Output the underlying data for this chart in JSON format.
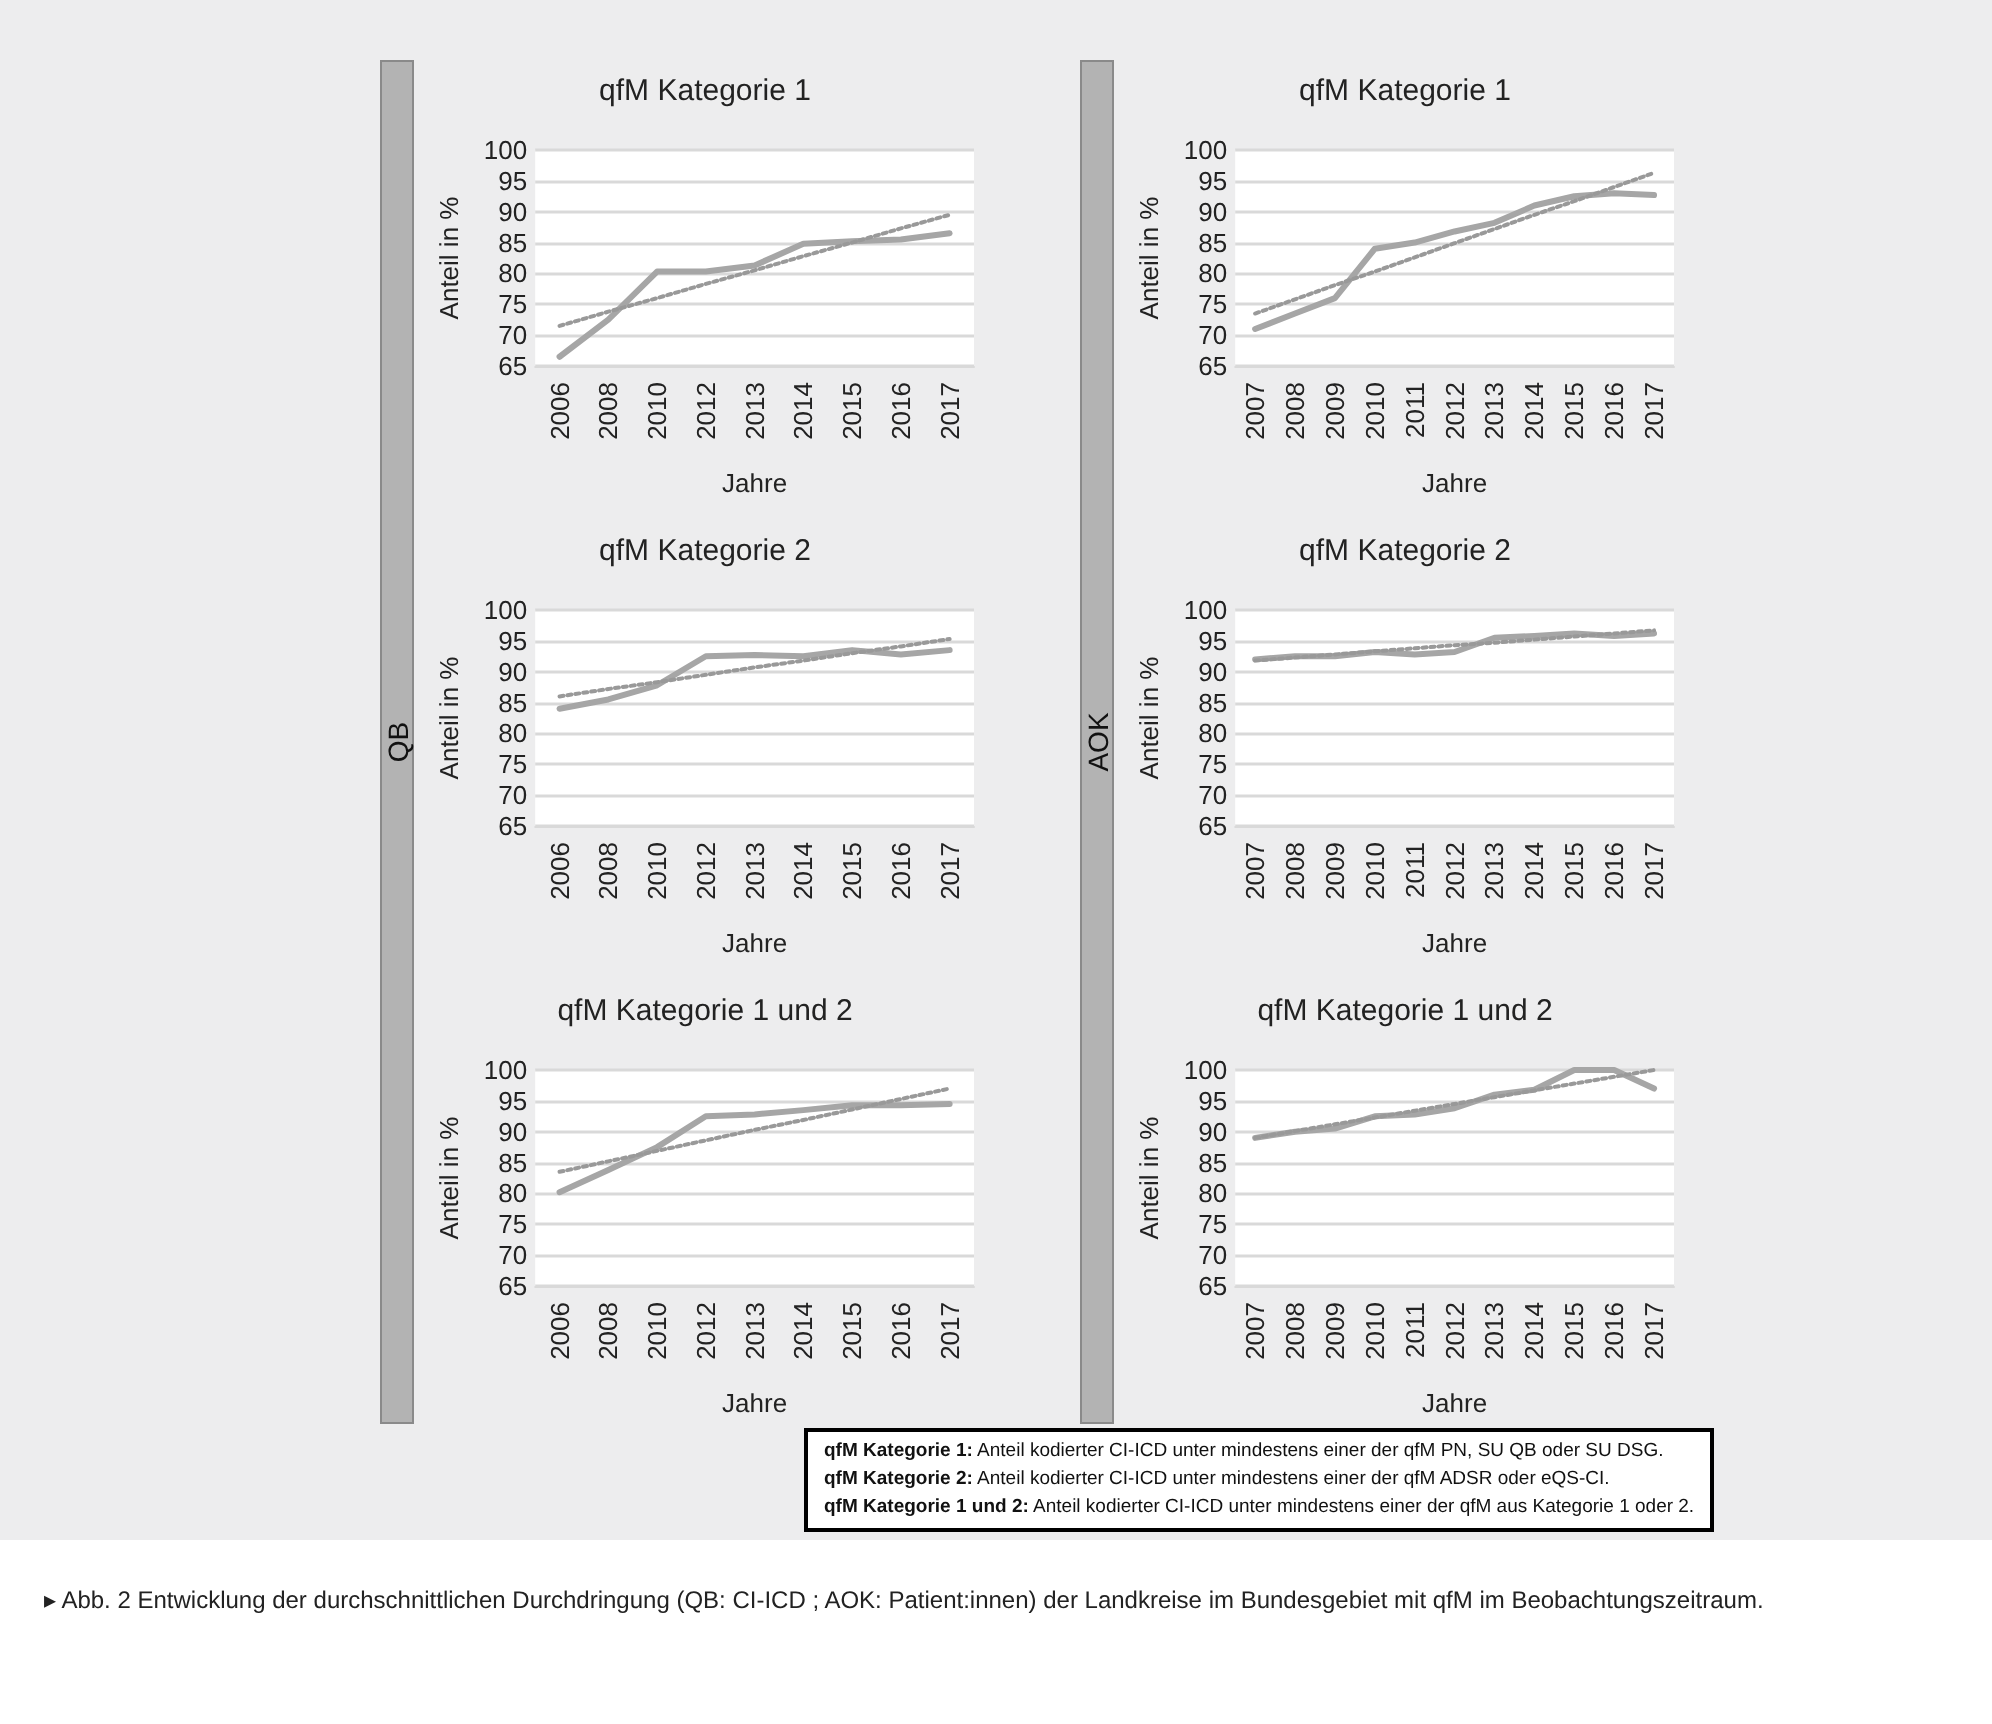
{
  "chart_data": [
    {
      "type": "line",
      "title": "qfM Kategorie 1",
      "xlabel": "Jahre",
      "ylabel": "Anteil in %",
      "annotations": [
        "QB"
      ],
      "categories": [
        "2006",
        "2008",
        "2010",
        "2012",
        "2013",
        "2014",
        "2015",
        "2016",
        "2017"
      ],
      "ylim": [
        65,
        100
      ],
      "yticks": [
        65,
        70,
        75,
        80,
        85,
        90,
        95,
        100
      ],
      "grid": "y",
      "marker": "none",
      "series": [
        {
          "color": "#a6a6a6",
          "line_style": "solid",
          "values": [
            66.5,
            72.5,
            80.3,
            80.3,
            81.3,
            84.8,
            85.2,
            85.5,
            86.5
          ]
        },
        {
          "color": "#999999",
          "line_style": "dotted",
          "values": [
            71.5,
            73.8,
            76,
            78.3,
            80.5,
            82.8,
            85,
            87.3,
            89.5
          ]
        }
      ]
    },
    {
      "type": "line",
      "title": "qfM Kategorie 1",
      "xlabel": "Jahre",
      "ylabel": "Anteil in %",
      "annotations": [
        "AOK"
      ],
      "categories": [
        "2007",
        "2008",
        "2009",
        "2010",
        "2011",
        "2012",
        "2013",
        "2014",
        "2015",
        "2016",
        "2017"
      ],
      "ylim": [
        65,
        100
      ],
      "yticks": [
        65,
        70,
        75,
        80,
        85,
        90,
        95,
        100
      ],
      "grid": "y",
      "marker": "none",
      "series": [
        {
          "color": "#a6a6a6",
          "line_style": "solid",
          "values": [
            71,
            73.5,
            76,
            84,
            85,
            86.8,
            88.2,
            91,
            92.5,
            93,
            92.7
          ]
        },
        {
          "color": "#999999",
          "line_style": "dotted",
          "values": [
            73.5,
            75.8,
            78.1,
            80.3,
            82.6,
            84.9,
            87.2,
            89.5,
            91.7,
            94,
            96.3
          ]
        }
      ]
    },
    {
      "type": "line",
      "title": "qfM Kategorie 2",
      "xlabel": "Jahre",
      "ylabel": "Anteil in %",
      "categories": [
        "2006",
        "2008",
        "2010",
        "2012",
        "2013",
        "2014",
        "2015",
        "2016",
        "2017"
      ],
      "ylim": [
        65,
        100
      ],
      "yticks": [
        65,
        70,
        75,
        80,
        85,
        90,
        95,
        100
      ],
      "grid": "y",
      "marker": "none",
      "series": [
        {
          "color": "#a6a6a6",
          "line_style": "solid",
          "values": [
            84,
            85.5,
            87.8,
            92.5,
            92.7,
            92.5,
            93.5,
            92.8,
            93.5
          ]
        },
        {
          "color": "#999999",
          "line_style": "dotted",
          "values": [
            86,
            87.2,
            88.3,
            89.5,
            90.7,
            91.8,
            93,
            94.1,
            95.3
          ]
        }
      ]
    },
    {
      "type": "line",
      "title": "qfM Kategorie 2",
      "xlabel": "Jahre",
      "ylabel": "Anteil in %",
      "categories": [
        "2007",
        "2008",
        "2009",
        "2010",
        "2011",
        "2012",
        "2013",
        "2014",
        "2015",
        "2016",
        "2017"
      ],
      "ylim": [
        65,
        100
      ],
      "yticks": [
        65,
        70,
        75,
        80,
        85,
        90,
        95,
        100
      ],
      "grid": "y",
      "marker": "none",
      "series": [
        {
          "color": "#a6a6a6",
          "line_style": "solid",
          "values": [
            92,
            92.5,
            92.5,
            93.2,
            92.8,
            93.2,
            95.5,
            95.8,
            96.2,
            95.8,
            96.2
          ]
        },
        {
          "color": "#999999",
          "line_style": "dotted",
          "values": [
            91.8,
            92.3,
            92.8,
            93.3,
            93.8,
            94.3,
            94.7,
            95.2,
            95.7,
            96.2,
            96.7
          ]
        }
      ]
    },
    {
      "type": "line",
      "title": "qfM Kategorie 1 und 2",
      "xlabel": "Jahre",
      "ylabel": "Anteil in %",
      "categories": [
        "2006",
        "2008",
        "2010",
        "2012",
        "2013",
        "2014",
        "2015",
        "2016",
        "2017"
      ],
      "ylim": [
        65,
        100
      ],
      "yticks": [
        65,
        70,
        75,
        80,
        85,
        90,
        95,
        100
      ],
      "grid": "y",
      "marker": "none",
      "series": [
        {
          "color": "#a6a6a6",
          "line_style": "solid",
          "values": [
            80.2,
            83.8,
            87.5,
            92.5,
            92.8,
            93.5,
            94.3,
            94.3,
            94.5
          ]
        },
        {
          "color": "#999999",
          "line_style": "dotted",
          "values": [
            83.5,
            85.2,
            86.9,
            88.6,
            90.3,
            91.9,
            93.6,
            95.3,
            97
          ]
        }
      ]
    },
    {
      "type": "line",
      "title": "qfM Kategorie 1 und 2",
      "xlabel": "Jahre",
      "ylabel": "Anteil in %",
      "annotations": [
        "qfM Kategorie 1: Anteil kodierter CI-ICD unter mindestens einer der qfM PN, SU QB oder SU DSG.",
        "qfM Kategorie 2: Anteil kodierter CI-ICD unter mindestens einer der qfM ADSR oder eQS-CI.",
        "qfM Kategorie 1 und 2: Anteil kodierter CI-ICD unter mindestens einer der qfM aus Kategorie 1 oder 2.",
        "▸ Abb. 2 Entwicklung der durchschnittlichen Durchdringung (QB: CI-ICD ; AOK: Patient:innen) der Landkreise im Bundesgebiet mit qfM im Beobachtungszeitraum."
      ],
      "categories": [
        "2007",
        "2008",
        "2009",
        "2010",
        "2011",
        "2012",
        "2013",
        "2014",
        "2015",
        "2016",
        "2017"
      ],
      "ylim": [
        65,
        100
      ],
      "yticks": [
        65,
        70,
        75,
        80,
        85,
        90,
        95,
        100
      ],
      "grid": "y",
      "marker": "none",
      "series": [
        {
          "color": "#a6a6a6",
          "line_style": "solid",
          "values": [
            89,
            90,
            90.5,
            92.5,
            92.8,
            93.8,
            96,
            96.8,
            100,
            100,
            97
          ]
        },
        {
          "color": "#999999",
          "line_style": "dotted",
          "values": [
            89,
            90.1,
            91.2,
            92.3,
            93.4,
            94.5,
            95.6,
            96.7,
            97.8,
            98.9,
            100
          ]
        }
      ]
    }
  ]
}
